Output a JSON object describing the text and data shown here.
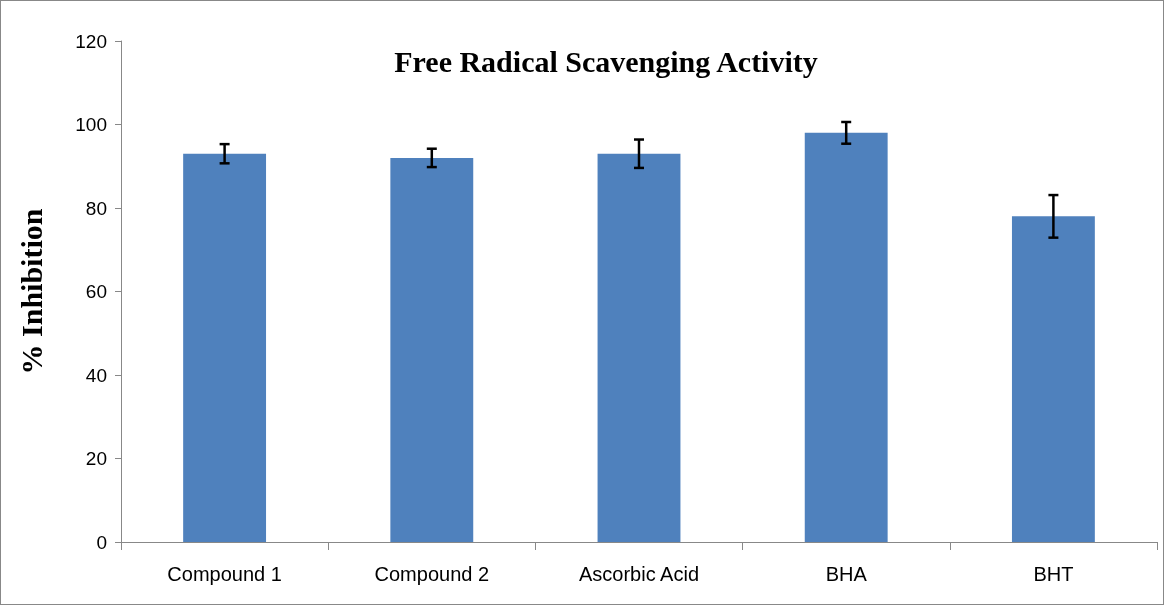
{
  "chart_data": {
    "type": "bar",
    "title": "Free Radical Scavenging Activity",
    "ylabel": "% Inhibition",
    "categories": [
      "Compound 1",
      "Compound 2",
      "Ascorbic Acid",
      "BHA",
      "BHT"
    ],
    "values": [
      93,
      92,
      93,
      98,
      78
    ],
    "errors": [
      2.3,
      2.2,
      3.4,
      2.6,
      5.1
    ],
    "color": "#4f81bd",
    "ylim": [
      0,
      120
    ],
    "yticks": [
      0,
      20,
      40,
      60,
      80,
      100,
      120
    ],
    "grid": false
  }
}
